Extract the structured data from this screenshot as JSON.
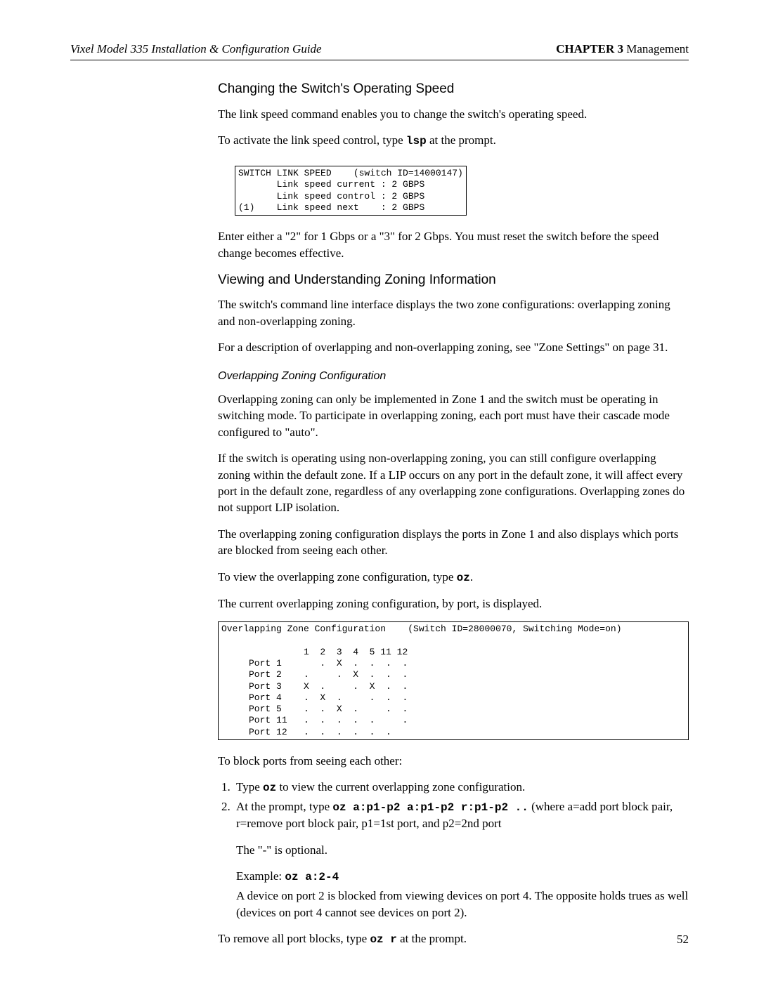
{
  "header": {
    "guide_title": "Vixel Model 335 Installation & Configuration Guide",
    "chapter_label": "CHAPTER 3",
    "chapter_name": " Management"
  },
  "section1": {
    "title": "Changing the Switch's Operating Speed",
    "p1": "The link speed command enables you to change the switch's operating speed.",
    "p2_a": "To activate the link speed control, type ",
    "p2_code": "lsp",
    "p2_b": " at the prompt.",
    "codebox": "SWITCH LINK SPEED    (switch ID=14000147)\n       Link speed current : 2 GBPS\n       Link speed control : 2 GBPS\n(1)    Link speed next    : 2 GBPS",
    "p3": "Enter either a \"2\" for 1 Gbps or a \"3\" for 2 Gbps. You must reset the switch before the speed change becomes effective."
  },
  "section2": {
    "title": "Viewing and Understanding Zoning Information",
    "p1": "The switch's command line interface displays the two zone configurations: overlapping zoning and non-overlapping zoning.",
    "p2": "For a description of overlapping and non-overlapping zoning, see \"Zone Settings\" on page 31.",
    "sub_title": "Overlapping Zoning Configuration",
    "p3": "Overlapping zoning can only be implemented in Zone 1 and the switch must be operating in switching mode. To participate in overlapping zoning, each port must have their cascade mode configured to \"auto\".",
    "p4": "If the switch is operating using non-overlapping zoning, you can still configure overlapping zoning within the default zone. If a LIP occurs on any port in the default zone, it will affect every port in the default zone, regardless of any overlapping zone configurations. Overlapping zones do not support LIP isolation.",
    "p5": "The overlapping zoning configuration displays the ports in Zone 1 and also displays which ports are blocked from seeing each other.",
    "p6_a": "To view the overlapping zone configuration, type ",
    "p6_code": "oz",
    "p6_b": ".",
    "p7": "The current overlapping zoning configuration, by port, is displayed.",
    "codebox2": "Overlapping Zone Configuration    (Switch ID=28000070, Switching Mode=on)\n\n               1  2  3  4  5 11 12\n     Port 1       .  X  .  .  .  .\n     Port 2    .     .  X  .  .  .\n     Port 3    X  .     .  X  .  .\n     Port 4    .  X  .     .  .  .\n     Port 5    .  .  X  .     .  .\n     Port 11   .  .  .  .  .     .\n     Port 12   .  .  .  .  .  .",
    "p8": "To block ports from seeing each other:",
    "steps": {
      "s1_a": "Type ",
      "s1_code": "oz",
      "s1_b": " to view the current overlapping zone configuration.",
      "s2_a": "At the prompt, type ",
      "s2_code": "oz a:p1-p2 a:p1-p2 r:p1-p2 ..",
      "s2_b": " (where a=add port block pair, r=remove port block pair, p1=1st port, and p2=2nd port"
    },
    "p9": "The \"-\" is optional.",
    "example_label": "Example: ",
    "example_code": "oz a:2-4",
    "p10": "A device on port 2 is blocked from viewing devices on port 4. The opposite holds trues as well (devices on port 4 cannot see devices on port 2).",
    "p11_a": "To remove all port blocks, type ",
    "p11_code": "oz r",
    "p11_b": " at the prompt."
  },
  "page_number": "52"
}
